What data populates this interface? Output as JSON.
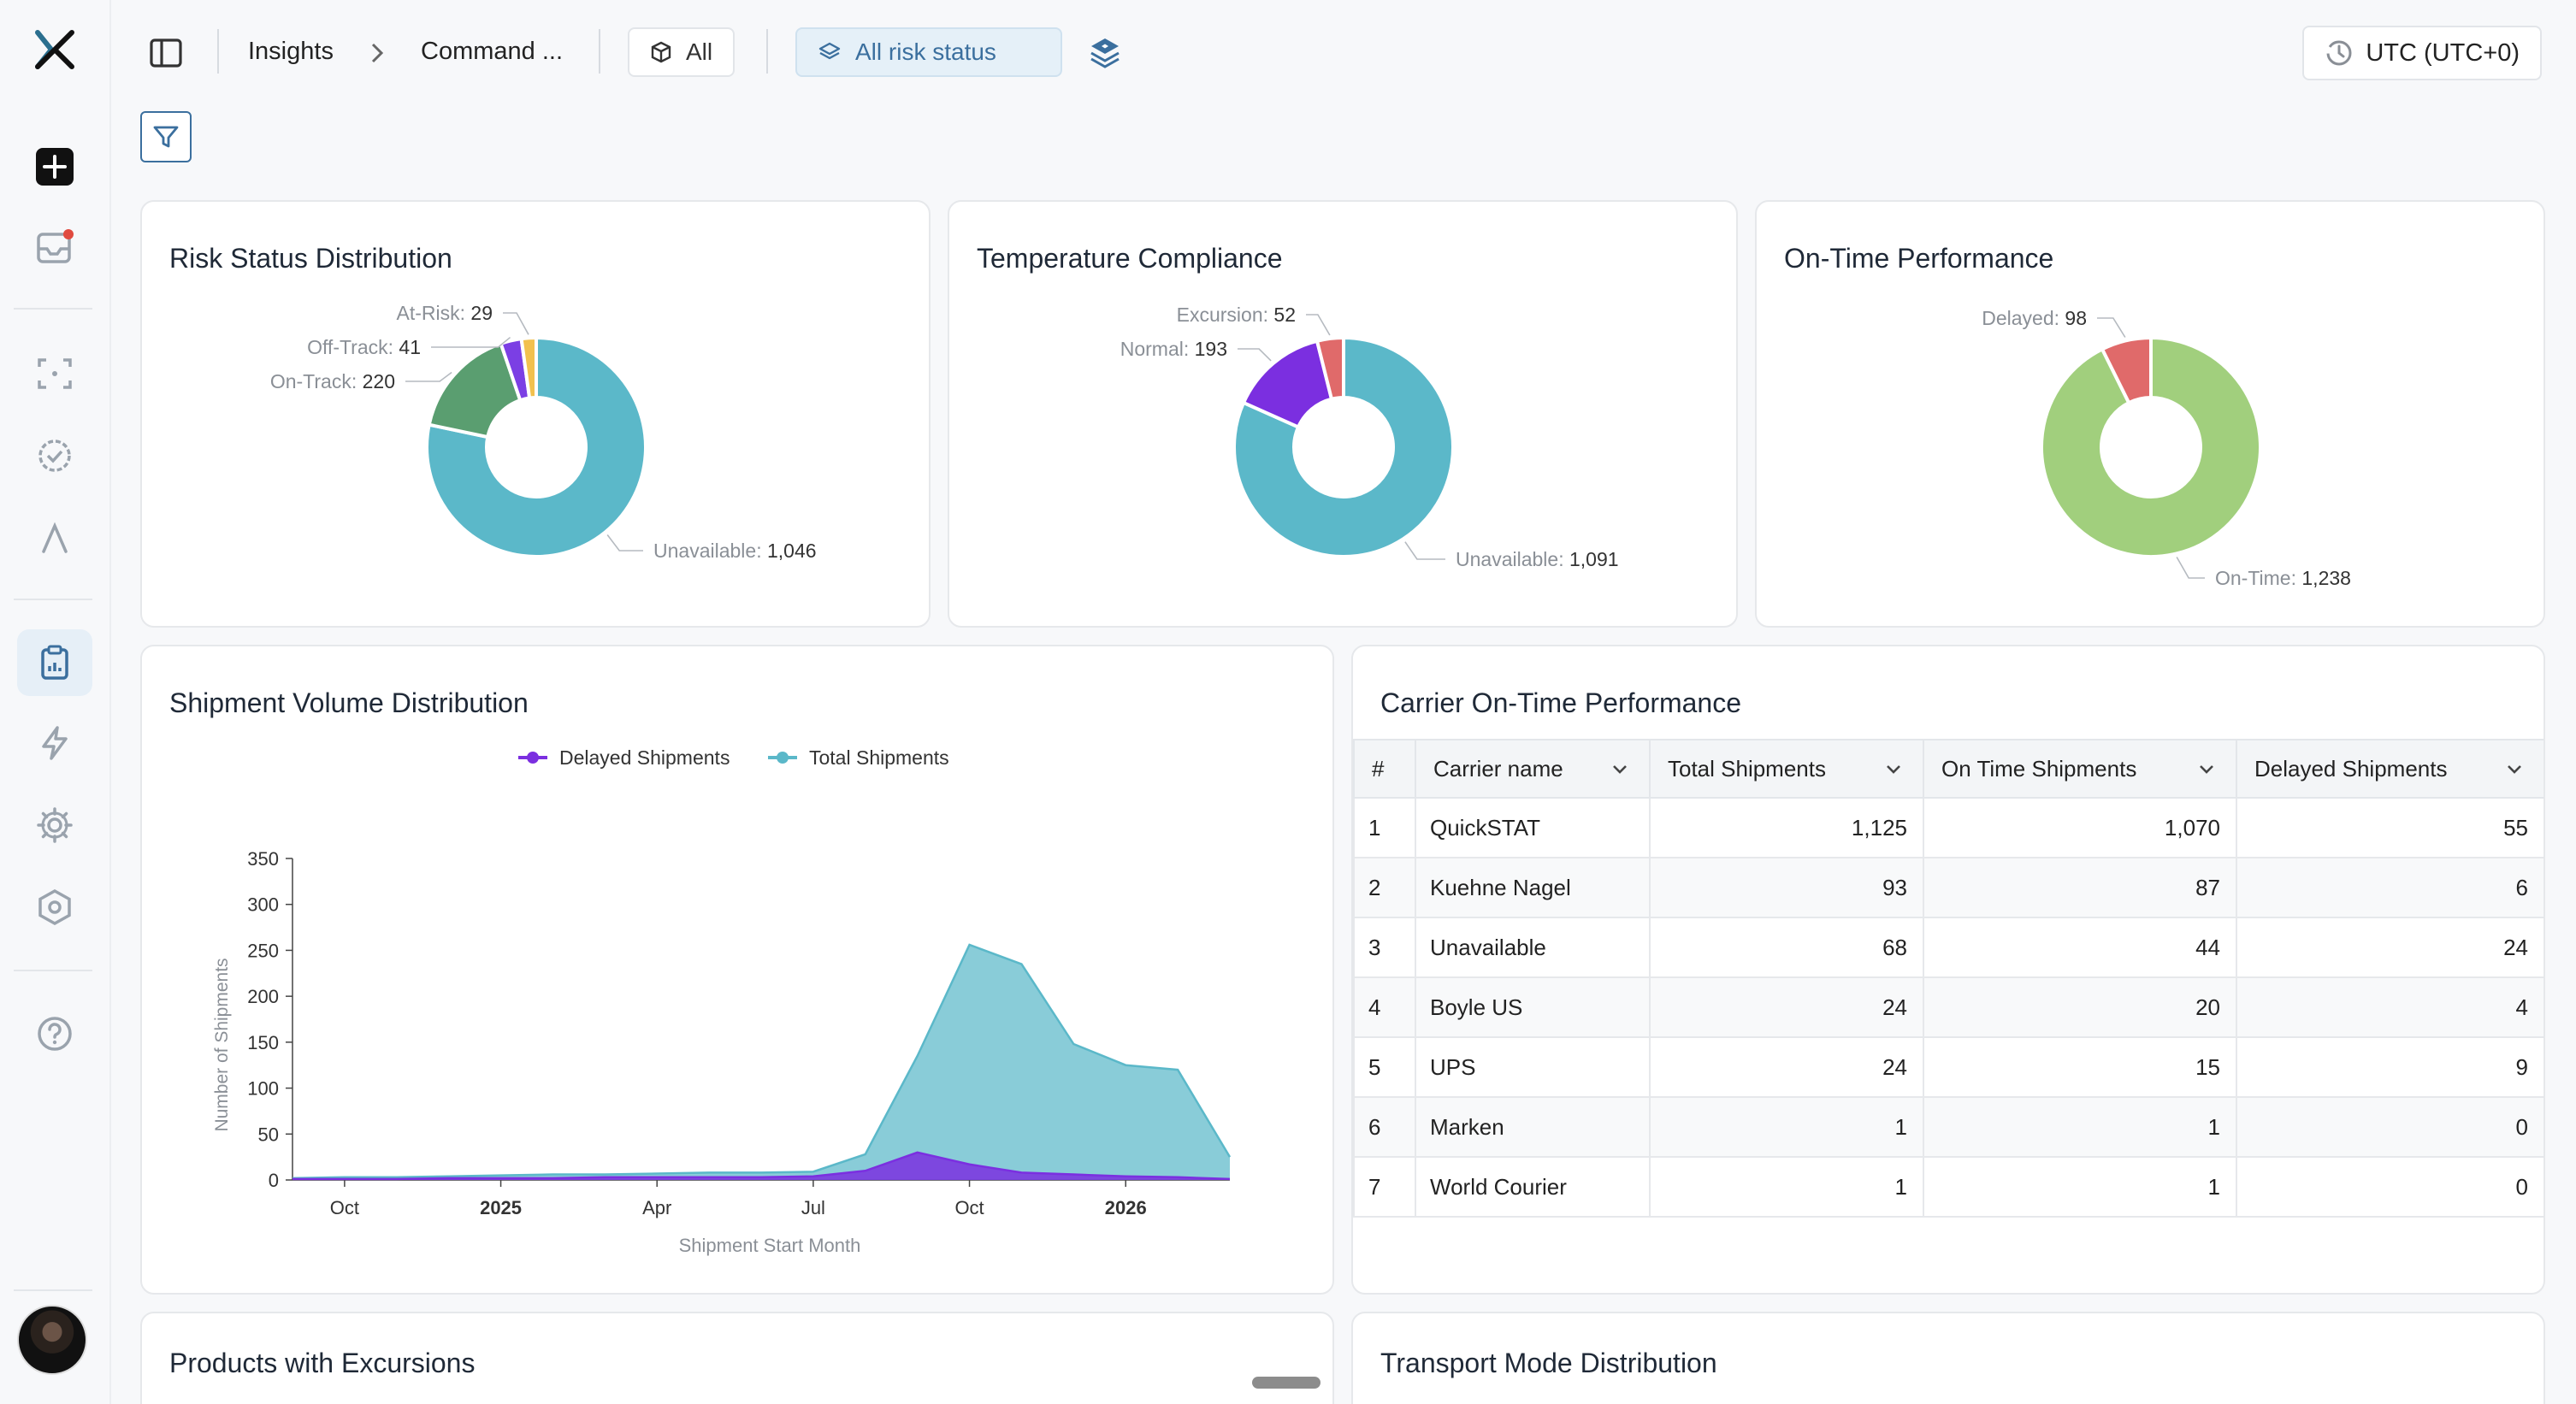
{
  "header": {
    "breadcrumbs": [
      "Insights",
      "Command ..."
    ],
    "filter_scope": "All",
    "risk_filter": "All risk status",
    "timezone": "UTC (UTC+0)"
  },
  "sidebar": {
    "icons": [
      "logo-icon",
      "new-icon",
      "inbox-icon",
      "scan-icon",
      "check-circle-icon",
      "lambda-icon",
      "clipboard-icon",
      "bolt-icon",
      "gear-icon",
      "hexagon-icon",
      "help-icon"
    ],
    "active": "clipboard-icon"
  },
  "risk_status": {
    "title": "Risk Status Distribution",
    "slices": [
      {
        "label": "Unavailable",
        "value": "1,046",
        "color": "#5bb8c9"
      },
      {
        "label": "On-Track",
        "value": "220",
        "color": "#5a9e70"
      },
      {
        "label": "Off-Track",
        "value": "41",
        "color": "#7b3fe4"
      },
      {
        "label": "At-Risk",
        "value": "29",
        "color": "#f2c14e"
      }
    ]
  },
  "temperature": {
    "title": "Temperature Compliance",
    "slices": [
      {
        "label": "Unavailable",
        "value": "1,091",
        "color": "#5bb8c9"
      },
      {
        "label": "Normal",
        "value": "193",
        "color": "#7b2fe0"
      },
      {
        "label": "Excursion",
        "value": "52",
        "color": "#e06a6a"
      }
    ]
  },
  "on_time": {
    "title": "On-Time Performance",
    "slices": [
      {
        "label": "On-Time",
        "value": "1,238",
        "color": "#a1cf7d"
      },
      {
        "label": "Delayed",
        "value": "98",
        "color": "#e06a6a"
      }
    ]
  },
  "chart_data": {
    "type": "area",
    "title": "Shipment Volume Distribution",
    "xlabel": "Shipment Start Month",
    "ylabel": "Number of Shipments",
    "ylim": [
      0,
      350
    ],
    "yticks": [
      "0",
      "50",
      "100",
      "150",
      "200",
      "250",
      "300",
      "350"
    ],
    "xticks": [
      "Oct",
      "2025",
      "Apr",
      "Jul",
      "Oct",
      "2026"
    ],
    "x": [
      "2024-09",
      "2024-10",
      "2024-11",
      "2024-12",
      "2025-01",
      "2025-02",
      "2025-03",
      "2025-04",
      "2025-05",
      "2025-06",
      "2025-07",
      "2025-08",
      "2025-09",
      "2025-10",
      "2025-11",
      "2025-12",
      "2026-01",
      "2026-02",
      "2026-03"
    ],
    "series": [
      {
        "name": "Delayed Shipments",
        "color": "#7b2fe0",
        "values": [
          1,
          1,
          1,
          2,
          2,
          2,
          3,
          3,
          3,
          3,
          4,
          10,
          30,
          17,
          8,
          6,
          4,
          3,
          1
        ]
      },
      {
        "name": "Total Shipments",
        "color": "#5bb8c9",
        "values": [
          2,
          3,
          3,
          4,
          5,
          6,
          6,
          7,
          8,
          8,
          9,
          28,
          135,
          256,
          235,
          148,
          125,
          120,
          25
        ]
      }
    ],
    "legend": "top-center",
    "grid": false
  },
  "carrier_table": {
    "title": "Carrier On-Time Performance",
    "columns": [
      "#",
      "Carrier name",
      "Total Shipments",
      "On Time Shipments",
      "Delayed Shipments"
    ],
    "rows": [
      [
        "1",
        "QuickSTAT",
        "1,125",
        "1,070",
        "55"
      ],
      [
        "2",
        "Kuehne Nagel",
        "93",
        "87",
        "6"
      ],
      [
        "3",
        "Unavailable",
        "68",
        "44",
        "24"
      ],
      [
        "4",
        "Boyle US",
        "24",
        "20",
        "4"
      ],
      [
        "5",
        "UPS",
        "24",
        "15",
        "9"
      ],
      [
        "6",
        "Marken",
        "1",
        "1",
        "0"
      ],
      [
        "7",
        "World Courier",
        "1",
        "1",
        "0"
      ]
    ]
  },
  "bottom": {
    "products_title": "Products with Excursions",
    "transport_title": "Transport Mode Distribution"
  }
}
